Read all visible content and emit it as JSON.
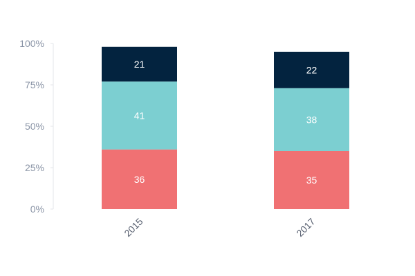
{
  "chart_data": {
    "type": "bar",
    "stacked": true,
    "categories": [
      "2015",
      "2017"
    ],
    "series": [
      {
        "values": [
          36,
          35
        ],
        "color": "#f07173"
      },
      {
        "values": [
          41,
          38
        ],
        "color": "#7ccfd1"
      },
      {
        "values": [
          21,
          22
        ],
        "color": "#03233f"
      }
    ],
    "ylim": [
      0,
      100
    ],
    "yticks": [
      "0%",
      "25%",
      "50%",
      "75%",
      "100%"
    ],
    "ytick_values": [
      0,
      25,
      50,
      75,
      100
    ],
    "grid": false,
    "legend": "none"
  }
}
